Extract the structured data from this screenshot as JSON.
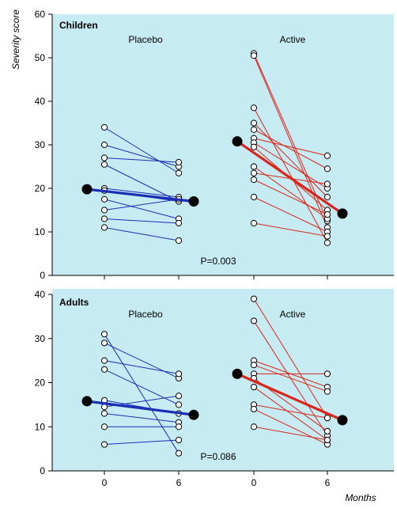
{
  "colors": {
    "panel_bg": "#c6ebf2",
    "placebo_line": "#1b2fb5",
    "active_line": "#d9261c",
    "marker_fill": "#ffffff",
    "mean_marker": "#000000",
    "axis": "#000000"
  },
  "figure": {
    "ylabel": "Severity score",
    "xlabel": "Months"
  },
  "chart_data": [
    {
      "type": "line",
      "title": "Children",
      "ylabel": "Severity score",
      "xlabel": "Months",
      "ylim": [
        0,
        60
      ],
      "yticks": [
        0,
        10,
        20,
        30,
        40,
        50,
        60
      ],
      "x_ticks": [
        "0",
        "6",
        "0",
        "6"
      ],
      "p_value": "P=0.003",
      "groups": [
        {
          "name": "Placebo",
          "pairs": [
            [
              34,
              23.5
            ],
            [
              30,
              25
            ],
            [
              27,
              26
            ],
            [
              25.5,
              17
            ],
            [
              20,
              18
            ],
            [
              19.5,
              17
            ],
            [
              17.5,
              13
            ],
            [
              15,
              17.5
            ],
            [
              13,
              12
            ],
            [
              11,
              8
            ]
          ],
          "mean": [
            19.8,
            17
          ]
        },
        {
          "name": "Active",
          "pairs": [
            [
              51,
              12.5
            ],
            [
              50.5,
              11
            ],
            [
              38.5,
              7.5
            ],
            [
              35,
              18
            ],
            [
              33.5,
              24.5
            ],
            [
              31.5,
              27.5
            ],
            [
              30.5,
              20
            ],
            [
              29.5,
              15
            ],
            [
              25,
              13
            ],
            [
              23.5,
              21
            ],
            [
              22,
              14
            ],
            [
              18,
              10
            ],
            [
              12,
              9
            ]
          ],
          "mean": [
            30.8,
            14.2
          ]
        }
      ]
    },
    {
      "type": "line",
      "title": "Adults",
      "ylabel": "Severity score",
      "xlabel": "Months",
      "ylim": [
        0,
        40
      ],
      "yticks": [
        0,
        10,
        20,
        30,
        40
      ],
      "x_ticks": [
        "0",
        "6",
        "0",
        "6"
      ],
      "p_value": "P=0.086",
      "groups": [
        {
          "name": "Placebo",
          "pairs": [
            [
              31,
              4
            ],
            [
              29,
              21
            ],
            [
              25,
              22
            ],
            [
              23,
              15
            ],
            [
              16,
              13
            ],
            [
              14.5,
              17
            ],
            [
              13,
              11
            ],
            [
              10,
              10
            ],
            [
              6,
              7
            ]
          ],
          "mean": [
            15.8,
            12.7
          ]
        },
        {
          "name": "Active",
          "pairs": [
            [
              39,
              12
            ],
            [
              34,
              8
            ],
            [
              25,
              19
            ],
            [
              24,
              18
            ],
            [
              22,
              22
            ],
            [
              21,
              9
            ],
            [
              19,
              7
            ],
            [
              15,
              12
            ],
            [
              14,
              6
            ],
            [
              10,
              7
            ]
          ],
          "mean": [
            22,
            11.5
          ]
        }
      ]
    }
  ]
}
